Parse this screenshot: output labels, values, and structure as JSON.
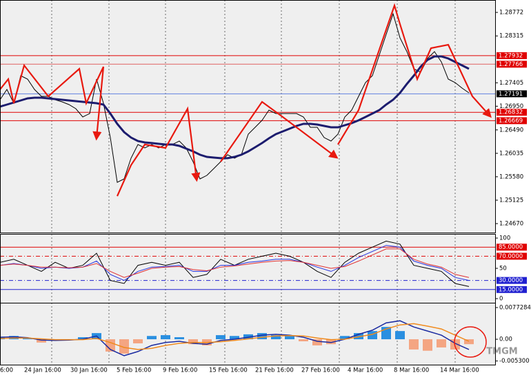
{
  "chart_data": [
    {
      "type": "line",
      "ylim": [
        1.24496,
        1.29013
      ],
      "yticks": [
        1.28772,
        1.28315,
        1.27405,
        {
          "value": 1.2695,
          "label": "1.26950"
        },
        {
          "value": 1.2649,
          "label": "1.26490"
        },
        1.26035,
        {
          "value": 1.2558,
          "label": "1.25580"
        },
        1.25125,
        {
          "value": 1.2467,
          "label": "1.24670"
        }
      ],
      "levels": [
        {
          "value": 1.27932,
          "color": "#e00000",
          "label_bg": "#e00000"
        },
        {
          "value": 1.27766,
          "color": "#e06060",
          "label_bg": "#e00000"
        },
        {
          "value": 1.27191,
          "color": "#6080e0",
          "label_bg": "#000000"
        },
        {
          "value": 1.26832,
          "color": "#e00000",
          "label_bg": "#e00000"
        },
        {
          "value": 1.26669,
          "color": "#e00000",
          "label_bg": "#e00000"
        }
      ],
      "series": [
        {
          "color": "#000000",
          "width": 1,
          "values": [
            1.27075,
            1.27276,
            1.27009,
            1.27543,
            1.27476,
            1.27276,
            1.27142,
            1.27142,
            1.27075,
            1.27035,
            1.26982,
            1.26902,
            1.26741,
            1.26808,
            1.27476,
            1.27009,
            1.26341,
            1.25472,
            1.25539,
            1.2594,
            1.26207,
            1.2614,
            1.26207,
            1.2614,
            1.26207,
            1.26207,
            1.26274,
            1.2614,
            1.25873,
            1.25539,
            1.25606,
            1.25739,
            1.25873,
            1.26007,
            1.2594,
            1.26007,
            1.26407,
            1.26541,
            1.26675,
            1.26875,
            1.26808,
            1.26808,
            1.26808,
            1.26808,
            1.26741,
            1.26541,
            1.26541,
            1.26341,
            1.26274,
            1.26407,
            1.26741,
            1.26875,
            1.27142,
            1.27409,
            1.27543,
            1.27944,
            1.28345,
            1.28745,
            1.28278,
            1.28011,
            1.27677,
            1.2761,
            1.27877,
            1.28011,
            1.2781,
            1.27476,
            1.27409,
            1.27302,
            1.27209
          ]
        },
        {
          "color": "#1c1c6e",
          "width": 3,
          "values": [
            1.26942,
            1.26982,
            1.27022,
            1.27062,
            1.27102,
            1.27115,
            1.27115,
            1.27102,
            1.27089,
            1.27075,
            1.27062,
            1.27049,
            1.27035,
            1.27022,
            1.27009,
            1.26982,
            1.26808,
            1.26608,
            1.26447,
            1.26341,
            1.26274,
            1.26247,
            1.26234,
            1.2622,
            1.26207,
            1.26207,
            1.2618,
            1.26127,
            1.26073,
            1.26007,
            1.25966,
            1.25953,
            1.2594,
            1.2594,
            1.25966,
            1.26007,
            1.26073,
            1.26153,
            1.26234,
            1.26327,
            1.26407,
            1.26461,
            1.26514,
            1.26568,
            1.26608,
            1.26608,
            1.26594,
            1.26568,
            1.26541,
            1.26541,
            1.26581,
            1.26621,
            1.26675,
            1.26741,
            1.26808,
            1.26875,
            1.26982,
            1.27075,
            1.27209,
            1.27383,
            1.27543,
            1.27717,
            1.2785,
            1.27917,
            1.27917,
            1.27877,
            1.2781,
            1.27743,
            1.27677
          ]
        }
      ]
    },
    {
      "type": "line",
      "ylim": [
        0,
        100
      ],
      "yticks": [
        100,
        50,
        0
      ],
      "levels": [
        {
          "value": 85,
          "label": "85.0000",
          "color": "#e00000",
          "label_bg": "#e00000",
          "dash": false
        },
        {
          "value": 70,
          "label": "70.0000",
          "color": "#e00000",
          "label_bg": "#e00000",
          "dash": true
        },
        {
          "value": 30,
          "label": "30.0000",
          "color": "#2020d0",
          "label_bg": "#2020d0",
          "dash": true
        },
        {
          "value": 15,
          "label": "15.0000",
          "color": "#2020d0",
          "label_bg": "#2020d0",
          "dash": false
        }
      ],
      "series": [
        {
          "color": "#000000",
          "width": 1,
          "values": [
            60,
            65,
            55,
            45,
            60,
            50,
            55,
            75,
            30,
            25,
            55,
            60,
            55,
            60,
            35,
            40,
            65,
            55,
            65,
            70,
            75,
            70,
            60,
            45,
            35,
            60,
            75,
            85,
            95,
            90,
            55,
            50,
            45,
            25,
            20
          ]
        },
        {
          "color": "#2030e0",
          "width": 1,
          "values": [
            55,
            58,
            55,
            50,
            52,
            50,
            52,
            62,
            40,
            30,
            45,
            52,
            53,
            55,
            45,
            45,
            55,
            55,
            60,
            62,
            65,
            65,
            60,
            52,
            45,
            55,
            68,
            78,
            88,
            85,
            62,
            55,
            50,
            35,
            30
          ]
        },
        {
          "color": "#e03030",
          "width": 1,
          "values": [
            55,
            57,
            55,
            52,
            52,
            51,
            52,
            58,
            45,
            35,
            42,
            50,
            52,
            53,
            48,
            46,
            52,
            54,
            57,
            60,
            62,
            63,
            60,
            55,
            50,
            53,
            62,
            72,
            82,
            82,
            65,
            57,
            52,
            40,
            35
          ]
        }
      ]
    },
    {
      "type": "bar",
      "ylim": [
        -0.0062,
        0.0089
      ],
      "yticks": [
        0.0077284,
        {
          "value": 0,
          "label": "0.00"
        },
        {
          "value": -0.0053,
          "label": "-0.005300"
        }
      ],
      "up_color": "#2a8fe0",
      "down_color": "#f4a582",
      "values": [
        0.0005,
        0.0008,
        0.0003,
        -0.0008,
        -0.0003,
        -0.0002,
        0.0005,
        0.0015,
        -0.003,
        -0.0035,
        -0.001,
        0.0008,
        0.001,
        0.0005,
        -0.0012,
        -0.0015,
        0.001,
        0.0008,
        0.0012,
        0.0015,
        0.001,
        0.0008,
        -0.0005,
        -0.0015,
        -0.0012,
        0.0008,
        0.0015,
        0.002,
        0.003,
        0.002,
        -0.0025,
        -0.0028,
        -0.002,
        -0.0025,
        -0.0012
      ],
      "series": [
        {
          "color": "#1a2aa0",
          "width": 1.5,
          "values": [
            0.0005,
            0.0006,
            0.0004,
            -0.0002,
            -0.0003,
            -0.0002,
            0,
            0.0008,
            -0.0025,
            -0.004,
            -0.003,
            -0.0015,
            -0.0008,
            -0.0005,
            -0.001,
            -0.0012,
            -0.0003,
            0,
            0.0005,
            0.001,
            0.0012,
            0.001,
            0.0005,
            -0.0005,
            -0.0008,
            0,
            0.0012,
            0.0022,
            0.004,
            0.0045,
            0.003,
            0.002,
            0.001,
            -0.001,
            -0.0025
          ]
        },
        {
          "color": "#f08a1c",
          "width": 1.5,
          "values": [
            0.0002,
            0.0003,
            0.0003,
            0.0001,
            -0.0001,
            -0.0001,
            -0.0001,
            0.0002,
            -0.0008,
            -0.002,
            -0.0025,
            -0.0022,
            -0.0015,
            -0.001,
            -0.0008,
            -0.0008,
            -0.0006,
            -0.0003,
            0.0001,
            0.0005,
            0.0008,
            0.0009,
            0.0008,
            0.0003,
            -0.0001,
            0,
            0.0006,
            0.0012,
            0.0025,
            0.0035,
            0.0038,
            0.0032,
            0.0025,
            0.001,
            -0.0005
          ]
        }
      ]
    }
  ],
  "time_axis": [
    "6:00",
    "24 Jan 16:00",
    "30 Jan 16:00",
    "5 Feb 16:00",
    "9 Feb 16:00",
    "15 Feb 16:00",
    "21 Feb 16:00",
    "27 Feb 16:00",
    "4 Mar 16:00",
    "8 Mar 16:00",
    "14 Mar 16:00"
  ],
  "watermark": "TMGM"
}
